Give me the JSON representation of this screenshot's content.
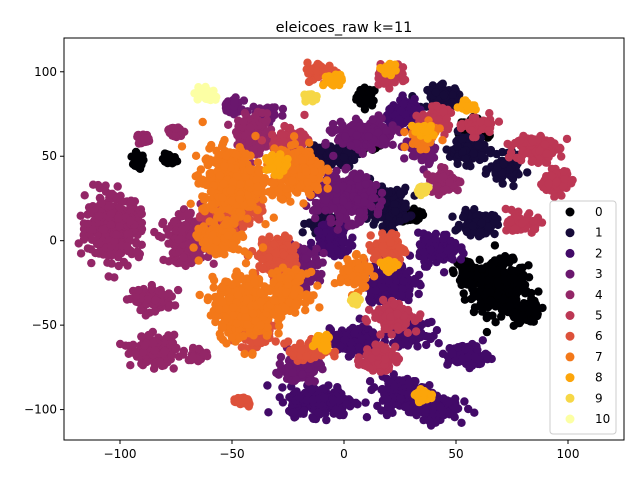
{
  "chart_data": {
    "type": "scatter",
    "title": "eleicoes_raw k=11",
    "xlabel": "",
    "ylabel": "",
    "xlim": [
      -125,
      125
    ],
    "ylim": [
      -118,
      120
    ],
    "xticks": [
      -100,
      -50,
      0,
      50,
      100
    ],
    "yticks": [
      -100,
      -50,
      0,
      50,
      100
    ],
    "grid": false,
    "legend_position": "right",
    "series": [
      {
        "name": "0",
        "color": "#000004",
        "clusters": [
          [
            10,
            85,
            4,
            5
          ],
          [
            -92,
            47,
            2.5,
            4
          ],
          [
            -78,
            48,
            3,
            3
          ],
          [
            70,
            -28,
            11,
            14
          ],
          [
            82,
            -42,
            5,
            6
          ],
          [
            55,
            -18,
            5,
            6
          ],
          [
            58,
            65,
            6,
            8
          ],
          [
            30,
            15,
            4,
            4
          ],
          [
            12,
            57,
            4,
            3
          ]
        ]
      },
      {
        "name": "1",
        "color": "#160b39",
        "clusters": [
          [
            -5,
            50,
            9,
            6
          ],
          [
            20,
            20,
            8,
            10
          ],
          [
            45,
            85,
            7,
            6
          ],
          [
            55,
            55,
            7,
            8
          ],
          [
            72,
            42,
            6,
            7
          ],
          [
            60,
            10,
            7,
            6
          ],
          [
            -10,
            10,
            6,
            6
          ],
          [
            5,
            30,
            6,
            6
          ]
        ]
      },
      {
        "name": "2",
        "color": "#420a68",
        "clusters": [
          [
            -10,
            -95,
            13,
            8
          ],
          [
            25,
            -90,
            10,
            8
          ],
          [
            55,
            -68,
            8,
            6
          ],
          [
            40,
            -98,
            10,
            7
          ],
          [
            5,
            -60,
            10,
            7
          ],
          [
            20,
            -25,
            10,
            10
          ],
          [
            42,
            -5,
            8,
            8
          ],
          [
            28,
            75,
            8,
            6
          ],
          [
            -5,
            0,
            7,
            8
          ],
          [
            30,
            -55,
            7,
            6
          ]
        ]
      },
      {
        "name": "3",
        "color": "#6a176e",
        "clusters": [
          [
            -35,
            75,
            6,
            4
          ],
          [
            10,
            62,
            12,
            8
          ],
          [
            0,
            25,
            12,
            12
          ],
          [
            -20,
            -15,
            8,
            10
          ],
          [
            35,
            55,
            5,
            8
          ],
          [
            -20,
            -75,
            8,
            7
          ],
          [
            -50,
            80,
            4,
            4
          ]
        ]
      },
      {
        "name": "4",
        "color": "#932667",
        "clusters": [
          [
            -103,
            8,
            11,
            16
          ],
          [
            -85,
            -35,
            8,
            6
          ],
          [
            -85,
            -65,
            9,
            8
          ],
          [
            -70,
            0,
            9,
            12
          ],
          [
            -90,
            60,
            2.5,
            3
          ],
          [
            -75,
            65,
            3,
            3
          ],
          [
            -65,
            -68,
            4,
            4
          ],
          [
            -40,
            62,
            7,
            10
          ],
          [
            45,
            35,
            6,
            6
          ]
        ]
      },
      {
        "name": "5",
        "color": "#bc3754",
        "clusters": [
          [
            20,
            98,
            6,
            5
          ],
          [
            85,
            55,
            8,
            8
          ],
          [
            95,
            35,
            6,
            6
          ],
          [
            80,
            10,
            6,
            5
          ],
          [
            40,
            72,
            6,
            6
          ],
          [
            60,
            68,
            6,
            5
          ],
          [
            -25,
            58,
            7,
            7
          ],
          [
            22,
            -45,
            8,
            7
          ],
          [
            -55,
            10,
            7,
            6
          ],
          [
            15,
            -70,
            7,
            6
          ]
        ]
      },
      {
        "name": "6",
        "color": "#dd513a",
        "clusters": [
          [
            -45,
            20,
            8,
            10
          ],
          [
            -30,
            -10,
            8,
            10
          ],
          [
            -40,
            -55,
            8,
            8
          ],
          [
            -15,
            -65,
            7,
            6
          ],
          [
            20,
            -5,
            6,
            8
          ],
          [
            -45,
            -95,
            4,
            3
          ],
          [
            -10,
            100,
            6,
            5
          ]
        ]
      },
      {
        "name": "7",
        "color": "#f37819",
        "clusters": [
          [
            -50,
            35,
            12,
            18
          ],
          [
            -45,
            -40,
            12,
            16
          ],
          [
            -20,
            40,
            10,
            12
          ],
          [
            -25,
            -30,
            8,
            10
          ],
          [
            35,
            62,
            6,
            6
          ],
          [
            -55,
            0,
            8,
            8
          ],
          [
            5,
            -20,
            6,
            8
          ]
        ]
      },
      {
        "name": "8",
        "color": "#fca50a",
        "clusters": [
          [
            35,
            65,
            4,
            4
          ],
          [
            -5,
            95,
            4,
            3
          ],
          [
            20,
            102,
            3,
            3
          ],
          [
            35,
            -92,
            3,
            3
          ],
          [
            -30,
            45,
            4,
            5
          ],
          [
            -10,
            -60,
            4,
            4
          ],
          [
            55,
            80,
            3,
            3
          ],
          [
            20,
            -15,
            3,
            3
          ]
        ]
      },
      {
        "name": "9",
        "color": "#f6d746",
        "clusters": [
          [
            -15,
            85,
            3,
            2
          ],
          [
            35,
            30,
            2,
            2
          ],
          [
            5,
            -35,
            2,
            2
          ]
        ]
      },
      {
        "name": "10",
        "color": "#fcffa4",
        "clusters": [
          [
            -62,
            87,
            4,
            4
          ]
        ]
      }
    ]
  }
}
